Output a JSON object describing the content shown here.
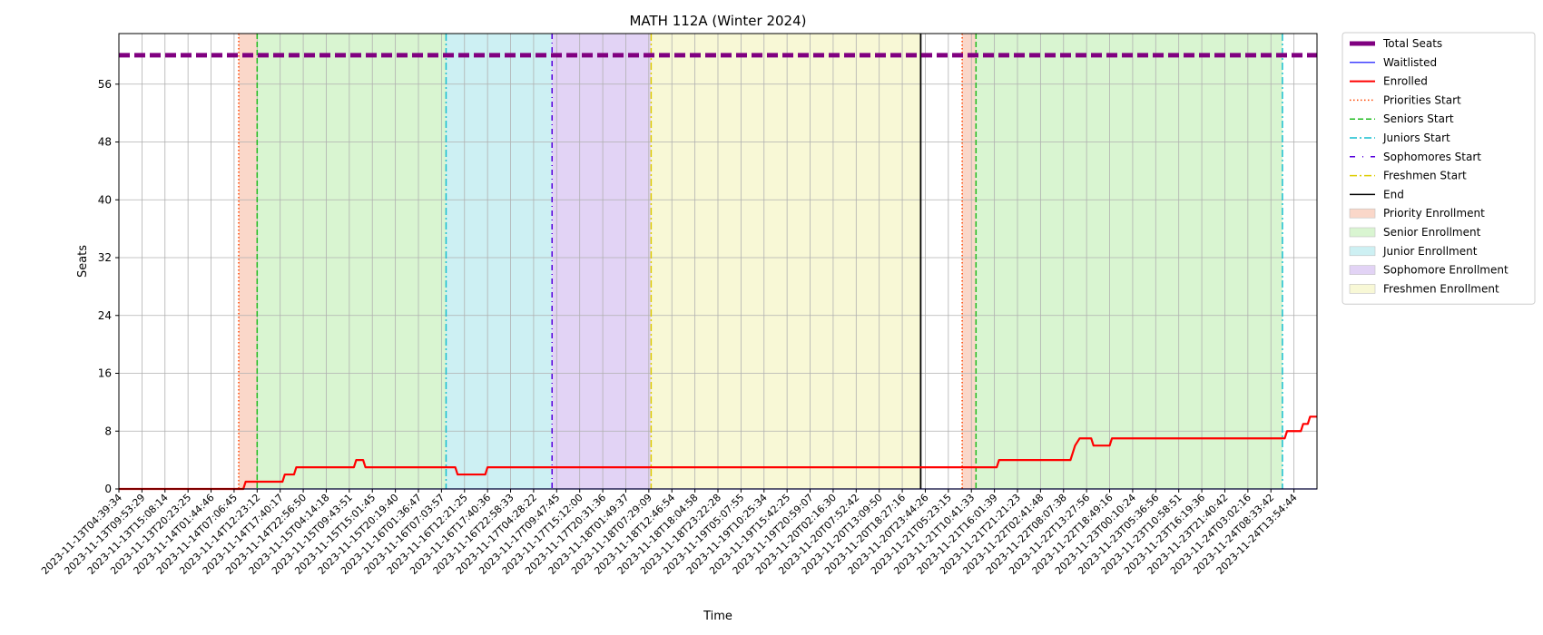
{
  "chart_data": {
    "type": "line",
    "title": "MATH 112A (Winter 2024)",
    "xlabel": "Time",
    "ylabel": "Seats",
    "y_ticks": [
      0,
      8,
      16,
      24,
      32,
      40,
      48,
      56
    ],
    "ylim": [
      0,
      63
    ],
    "grid": true,
    "legend_position": "outside-right",
    "x_ticks": [
      "2023-11-13T04:39:34",
      "2023-11-13T09:53:29",
      "2023-11-13T15:08:14",
      "2023-11-13T20:23:25",
      "2023-11-14T01:44:46",
      "2023-11-14T07:06:45",
      "2023-11-14T12:23:12",
      "2023-11-14T17:40:17",
      "2023-11-14T22:56:50",
      "2023-11-15T04:14:18",
      "2023-11-15T09:43:51",
      "2023-11-15T15:01:45",
      "2023-11-15T20:19:40",
      "2023-11-16T01:36:47",
      "2023-11-16T07:03:57",
      "2023-11-16T12:21:25",
      "2023-11-16T17:40:36",
      "2023-11-16T22:58:33",
      "2023-11-17T04:28:22",
      "2023-11-17T09:47:45",
      "2023-11-17T15:12:00",
      "2023-11-17T20:31:36",
      "2023-11-18T01:49:37",
      "2023-11-18T07:29:09",
      "2023-11-18T12:46:54",
      "2023-11-18T18:04:58",
      "2023-11-18T23:22:28",
      "2023-11-19T05:07:55",
      "2023-11-19T10:25:34",
      "2023-11-19T15:42:25",
      "2023-11-19T20:59:07",
      "2023-11-20T02:16:30",
      "2023-11-20T07:52:42",
      "2023-11-20T13:09:50",
      "2023-11-20T18:27:16",
      "2023-11-20T23:44:26",
      "2023-11-21T05:23:15",
      "2023-11-21T10:41:33",
      "2023-11-21T16:01:39",
      "2023-11-21T21:21:23",
      "2023-11-22T02:41:48",
      "2023-11-22T08:07:38",
      "2023-11-22T13:27:56",
      "2023-11-22T18:49:16",
      "2023-11-23T00:10:24",
      "2023-11-23T05:36:56",
      "2023-11-23T10:58:51",
      "2023-11-23T16:19:36",
      "2023-11-23T21:40:42",
      "2023-11-24T03:02:16",
      "2023-11-24T08:33:42",
      "2023-11-24T13:54:44"
    ],
    "x_range": [
      0,
      52
    ],
    "total_seats": 60,
    "series": [
      {
        "name": "Total Seats",
        "color": "#800080",
        "dash": "12,5",
        "points": [
          [
            0,
            60
          ],
          [
            52,
            60
          ]
        ]
      },
      {
        "name": "Waitlisted",
        "color": "#0000ff",
        "points": [
          [
            0,
            0
          ],
          [
            52,
            0
          ]
        ]
      },
      {
        "name": "Enrolled",
        "color": "#ff0000",
        "points": [
          [
            0,
            0
          ],
          [
            5.4,
            0
          ],
          [
            5.5,
            1
          ],
          [
            7.1,
            1
          ],
          [
            7.2,
            2
          ],
          [
            7.6,
            2
          ],
          [
            7.7,
            3
          ],
          [
            10.2,
            3
          ],
          [
            10.3,
            4
          ],
          [
            10.6,
            4
          ],
          [
            10.7,
            3
          ],
          [
            14.6,
            3
          ],
          [
            14.7,
            2
          ],
          [
            15.9,
            2
          ],
          [
            16.0,
            3
          ],
          [
            38.1,
            3
          ],
          [
            38.2,
            4
          ],
          [
            41.3,
            4
          ],
          [
            41.4,
            5
          ],
          [
            41.5,
            6
          ],
          [
            41.7,
            7
          ],
          [
            42.2,
            7
          ],
          [
            42.3,
            6
          ],
          [
            43.0,
            6
          ],
          [
            43.1,
            7
          ],
          [
            50.6,
            7
          ],
          [
            50.7,
            8
          ],
          [
            51.3,
            8
          ],
          [
            51.4,
            9
          ],
          [
            51.6,
            9
          ],
          [
            51.7,
            10
          ],
          [
            52,
            10
          ]
        ]
      }
    ],
    "phases": [
      {
        "name": "Priority Enrollment",
        "start": 5.2,
        "end": 6.0,
        "color": "#fad7c9"
      },
      {
        "name": "Senior Enrollment",
        "start": 6.0,
        "end": 14.2,
        "color": "#d9f5d1"
      },
      {
        "name": "Junior Enrollment",
        "start": 14.2,
        "end": 18.8,
        "color": "#cdf0f3"
      },
      {
        "name": "Sophomore Enrollment",
        "start": 18.8,
        "end": 23.1,
        "color": "#e2d3f5"
      },
      {
        "name": "Freshmen Enrollment",
        "start": 23.1,
        "end": 34.8,
        "color": "#f8f8d6"
      },
      {
        "name": "Priority Enrollment",
        "start": 36.6,
        "end": 37.2,
        "color": "#fad7c9"
      },
      {
        "name": "Senior Enrollment",
        "start": 37.2,
        "end": 50.5,
        "color": "#d9f5d1"
      }
    ],
    "markers": [
      {
        "name": "Priorities Start",
        "x": 5.2,
        "color": "#ff4500",
        "dash": "1.5,2.5"
      },
      {
        "name": "Seniors Start",
        "x": 6.0,
        "color": "#22bb22",
        "dash": "6,3"
      },
      {
        "name": "Juniors Start",
        "x": 14.2,
        "color": "#17becf",
        "dash": "8,3,2,3"
      },
      {
        "name": "Sophomores Start",
        "x": 18.8,
        "color": "#5500dd",
        "dash": "6,4,1,4"
      },
      {
        "name": "Freshmen Start",
        "x": 23.1,
        "color": "#ddcc00",
        "dash": "8,3,2,3"
      },
      {
        "name": "End",
        "x": 34.8,
        "color": "#000000",
        "dash": ""
      },
      {
        "name": "Priorities Start",
        "x": 36.6,
        "color": "#ff4500",
        "dash": "1.5,2.5"
      },
      {
        "name": "Seniors Start",
        "x": 37.2,
        "color": "#22bb22",
        "dash": "6,3"
      },
      {
        "name": "Juniors Start",
        "x": 50.5,
        "color": "#17becf",
        "dash": "8,3,2,3"
      }
    ],
    "legend": [
      {
        "label": "Total Seats",
        "kind": "line",
        "color": "#800080",
        "dash": "",
        "width": 5
      },
      {
        "label": "Waitlisted",
        "kind": "line",
        "color": "#0000ff",
        "dash": "",
        "width": 1.2
      },
      {
        "label": "Enrolled",
        "kind": "line",
        "color": "#ff0000",
        "dash": "",
        "width": 2
      },
      {
        "label": "Priorities Start",
        "kind": "line",
        "color": "#ff4500",
        "dash": "1.5,2.5",
        "width": 1.5
      },
      {
        "label": "Seniors Start",
        "kind": "line",
        "color": "#22bb22",
        "dash": "6,3",
        "width": 1.5
      },
      {
        "label": "Juniors Start",
        "kind": "line",
        "color": "#17becf",
        "dash": "8,3,2,3",
        "width": 1.5
      },
      {
        "label": "Sophomores Start",
        "kind": "line",
        "color": "#5500dd",
        "dash": "6,8,1,8",
        "width": 1.5
      },
      {
        "label": "Freshmen Start",
        "kind": "line",
        "color": "#ddcc00",
        "dash": "8,3,2,3",
        "width": 1.5
      },
      {
        "label": "End",
        "kind": "line",
        "color": "#000000",
        "dash": "",
        "width": 1.5
      },
      {
        "label": "Priority Enrollment",
        "kind": "patch",
        "color": "#fad7c9"
      },
      {
        "label": "Senior Enrollment",
        "kind": "patch",
        "color": "#d9f5d1"
      },
      {
        "label": "Junior Enrollment",
        "kind": "patch",
        "color": "#cdf0f3"
      },
      {
        "label": "Sophomore Enrollment",
        "kind": "patch",
        "color": "#e2d3f5"
      },
      {
        "label": "Freshmen Enrollment",
        "kind": "patch",
        "color": "#f8f8d6"
      }
    ]
  }
}
